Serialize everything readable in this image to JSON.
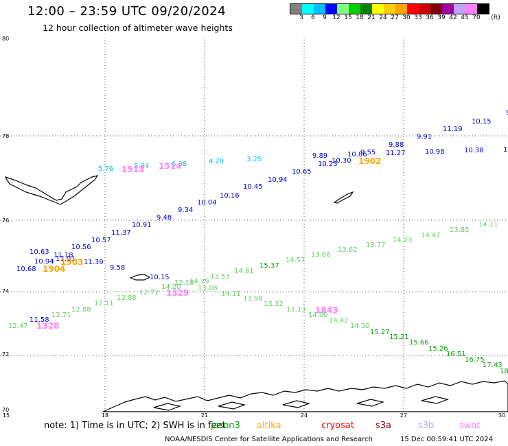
{
  "title": "12:00 – 23:59 UTC 09/20/2024",
  "subtitle": "12 hour collection of altimeter wave heights",
  "colorbar": {
    "unit": "(ft)",
    "ticks": [
      "3",
      "6",
      "9",
      "12",
      "15",
      "18",
      "21",
      "24",
      "27",
      "30",
      "33",
      "36",
      "39",
      "42",
      "45",
      "70"
    ],
    "colors": [
      "#808080",
      "#00ffff",
      "#00bfff",
      "#0000ff",
      "#80ff80",
      "#00d000",
      "#008000",
      "#ffff00",
      "#ffd000",
      "#ffa500",
      "#ff0000",
      "#d00000",
      "#800000",
      "#a000a0",
      "#c0a0ff",
      "#ff80ff",
      "#000000"
    ]
  },
  "axes": {
    "lat_labels": [
      "80",
      "78",
      "76",
      "74",
      "72",
      "70"
    ],
    "lon_labels": [
      "15",
      "18",
      "21",
      "24",
      "27",
      "30"
    ]
  },
  "map": {
    "icons": [
      "coastline-icon",
      "island-icon"
    ],
    "colors": {
      "grid": "#555555",
      "coast": "#000000"
    }
  },
  "observations": [
    {
      "v": "9",
      "c": "#0000d0"
    },
    {
      "v": "10.15",
      "c": "#0000d0"
    },
    {
      "v": "11.19",
      "c": "#0000d0"
    },
    {
      "v": "9.91",
      "c": "#0000d0"
    },
    {
      "v": "9.88",
      "c": "#0000d0"
    },
    {
      "v": "10.98",
      "c": "#0000d0"
    },
    {
      "v": "10.38",
      "c": "#0000d0"
    },
    {
      "v": "1(",
      "c": "#0000d0"
    },
    {
      "v": "10.86",
      "c": "#0000d0"
    },
    {
      "v": "9.55",
      "c": "#0000d0"
    },
    {
      "v": "11.27",
      "c": "#0000d0"
    },
    {
      "v": "9.89",
      "c": "#0000d0"
    },
    {
      "v": "10.30",
      "c": "#0000d0"
    },
    {
      "v": "10.23",
      "c": "#0000d0"
    },
    {
      "v": "10.65",
      "c": "#0000d0"
    },
    {
      "v": "10.94",
      "c": "#0000d0"
    },
    {
      "v": "10.45",
      "c": "#0000d0"
    },
    {
      "v": "10.16",
      "c": "#0000d0"
    },
    {
      "v": "10.04",
      "c": "#0000d0"
    },
    {
      "v": "9.34",
      "c": "#0000d0"
    },
    {
      "v": "9.48",
      "c": "#0000d0"
    },
    {
      "v": "10.91",
      "c": "#0000d0"
    },
    {
      "v": "11.37",
      "c": "#0000d0"
    },
    {
      "v": "10.57",
      "c": "#0000d0"
    },
    {
      "v": "10.56",
      "c": "#0000d0"
    },
    {
      "v": "10.63",
      "c": "#0000d0"
    },
    {
      "v": "11.18",
      "c": "#0000d0"
    },
    {
      "v": "11.01",
      "c": "#0000d0"
    },
    {
      "v": "10.94",
      "c": "#0000d0"
    },
    {
      "v": "11.39",
      "c": "#0000d0"
    },
    {
      "v": "10.68",
      "c": "#0000d0"
    },
    {
      "v": "9.58",
      "c": "#0000d0"
    },
    {
      "v": "10.15",
      "c": "#0000d0"
    },
    {
      "v": "11.58",
      "c": "#0000d0"
    },
    {
      "v": "5.76",
      "c": "#00c8e0"
    },
    {
      "v": "5.84",
      "c": "#00c8e0"
    },
    {
      "v": "6.38",
      "c": "#00c8e0"
    },
    {
      "v": "4.28",
      "c": "#00c8e0"
    },
    {
      "v": "3.25",
      "c": "#00c8e0"
    },
    {
      "v": "14.11",
      "c": "#60d060"
    },
    {
      "v": "13.85",
      "c": "#60d060"
    },
    {
      "v": "14.47",
      "c": "#60d060"
    },
    {
      "v": "14.23",
      "c": "#60d060"
    },
    {
      "v": "13.77",
      "c": "#60d060"
    },
    {
      "v": "13.62",
      "c": "#60d060"
    },
    {
      "v": "13.86",
      "c": "#60d060"
    },
    {
      "v": "14.57",
      "c": "#60d060"
    },
    {
      "v": "15.37",
      "c": "#00a000"
    },
    {
      "v": "14.81",
      "c": "#60d060"
    },
    {
      "v": "13.53",
      "c": "#60d060"
    },
    {
      "v": "14.29",
      "c": "#60d060"
    },
    {
      "v": "12.18",
      "c": "#60d060"
    },
    {
      "v": "14.20",
      "c": "#60d060"
    },
    {
      "v": "13.08",
      "c": "#60d060"
    },
    {
      "v": "12.72",
      "c": "#60d060"
    },
    {
      "v": "13.88",
      "c": "#60d060"
    },
    {
      "v": "14.11",
      "c": "#60d060"
    },
    {
      "v": "13.98",
      "c": "#60d060"
    },
    {
      "v": "13.32",
      "c": "#60d060"
    },
    {
      "v": "13.13",
      "c": "#60d060"
    },
    {
      "v": "14.00",
      "c": "#60d060"
    },
    {
      "v": "14.42",
      "c": "#60d060"
    },
    {
      "v": "14.30",
      "c": "#60d060"
    },
    {
      "v": "15.27",
      "c": "#00a000"
    },
    {
      "v": "15.21",
      "c": "#00a000"
    },
    {
      "v": "15.66",
      "c": "#00a000"
    },
    {
      "v": "15.26",
      "c": "#00a000"
    },
    {
      "v": "16.51",
      "c": "#00a000"
    },
    {
      "v": "16.75",
      "c": "#00a000"
    },
    {
      "v": "17.43",
      "c": "#00a000"
    },
    {
      "v": "18",
      "c": "#00a000"
    },
    {
      "v": "12.11",
      "c": "#60d060"
    },
    {
      "v": "12.88",
      "c": "#60d060"
    },
    {
      "v": "12.71",
      "c": "#60d060"
    },
    {
      "v": "12.47",
      "c": "#60d060"
    }
  ],
  "ids": [
    {
      "v": "1513",
      "c": "#ff80ff"
    },
    {
      "v": "1514",
      "c": "#ff80ff"
    },
    {
      "v": "1902",
      "c": "#ffa500"
    },
    {
      "v": "1903",
      "c": "#ffa500"
    },
    {
      "v": "1904",
      "c": "#ffa500"
    },
    {
      "v": "1329",
      "c": "#ff80ff"
    },
    {
      "v": "1843",
      "c": "#ff80ff"
    },
    {
      "v": "1328",
      "c": "#ff80ff"
    }
  ],
  "footer": {
    "note": "note: 1) Time is in UTC; 2) SWH is in feet",
    "satellites": [
      {
        "name": "jason3",
        "color": "#00a000"
      },
      {
        "name": "altika",
        "color": "#ffa500"
      },
      {
        "name": "cryosat",
        "color": "#ff0000"
      },
      {
        "name": "s3a",
        "color": "#800000"
      },
      {
        "name": "s3b",
        "color": "#c0a0ff"
      },
      {
        "name": "swot",
        "color": "#ff80ff"
      }
    ],
    "credit": "NOAA/NESDIS Center for Satellite Applications and Research",
    "timestamp": "15 Dec 00:59:41 UTC 2024"
  }
}
